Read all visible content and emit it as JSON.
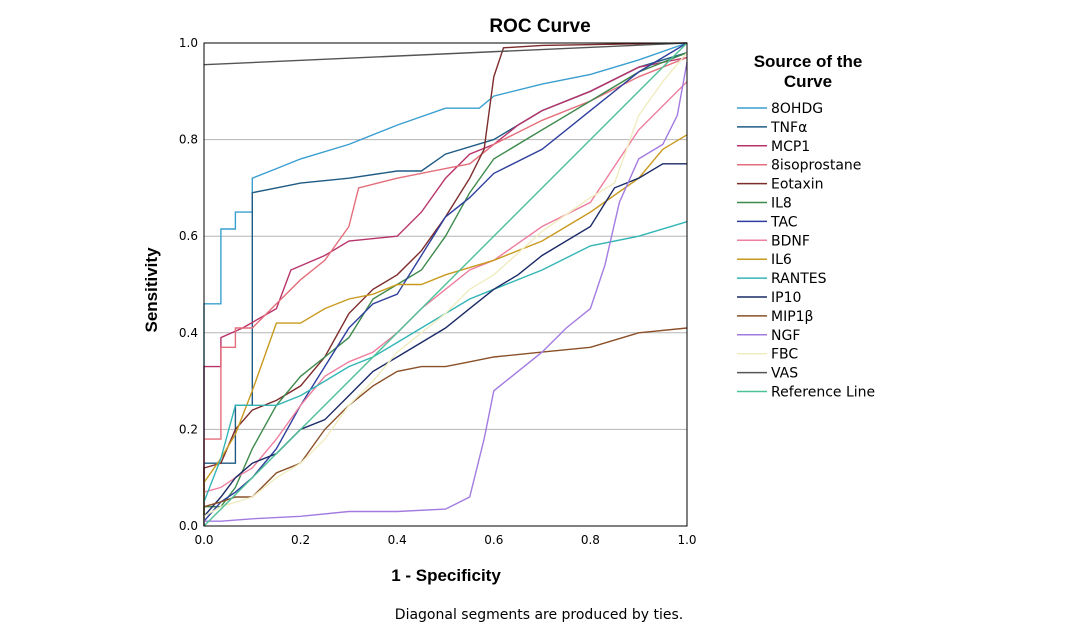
{
  "chart_data": {
    "type": "line",
    "title": "ROC Curve",
    "xlabel": "1 - Specificity",
    "ylabel": "Sensitivity",
    "xlim": [
      0,
      1
    ],
    "ylim": [
      0,
      1
    ],
    "x_ticks": [
      "0.0",
      "0.2",
      "0.4",
      "0.6",
      "0.8",
      "1.0"
    ],
    "y_ticks": [
      "0.0",
      "0.2",
      "0.4",
      "0.6",
      "0.8",
      "1.0"
    ],
    "grid": "horizontal",
    "legend_title": "Source of the Curve",
    "legend_title_lines": [
      "Source of the",
      "Curve"
    ],
    "legend_position": "right",
    "footnote": "Diagonal segments are produced by ties.",
    "series": [
      {
        "name": "8OHDG",
        "color": "#3a9fcf",
        "points": [
          [
            0,
            0
          ],
          [
            0,
            0.46
          ],
          [
            0.035,
            0.46
          ],
          [
            0.035,
            0.615
          ],
          [
            0.065,
            0.615
          ],
          [
            0.065,
            0.65
          ],
          [
            0.1,
            0.65
          ],
          [
            0.1,
            0.72
          ],
          [
            0.15,
            0.74
          ],
          [
            0.2,
            0.76
          ],
          [
            0.3,
            0.79
          ],
          [
            0.4,
            0.83
          ],
          [
            0.5,
            0.865
          ],
          [
            0.57,
            0.865
          ],
          [
            0.6,
            0.89
          ],
          [
            0.7,
            0.915
          ],
          [
            0.8,
            0.935
          ],
          [
            0.9,
            0.965
          ],
          [
            1,
            1
          ]
        ]
      },
      {
        "name": "TNFα",
        "color": "#1f5b85",
        "points": [
          [
            0,
            0
          ],
          [
            0,
            0.13
          ],
          [
            0.065,
            0.13
          ],
          [
            0.065,
            0.25
          ],
          [
            0.1,
            0.25
          ],
          [
            0.1,
            0.69
          ],
          [
            0.15,
            0.7
          ],
          [
            0.2,
            0.71
          ],
          [
            0.3,
            0.72
          ],
          [
            0.4,
            0.735
          ],
          [
            0.45,
            0.735
          ],
          [
            0.5,
            0.77
          ],
          [
            0.6,
            0.8
          ],
          [
            0.7,
            0.86
          ],
          [
            0.8,
            0.9
          ],
          [
            0.9,
            0.95
          ],
          [
            1,
            0.98
          ]
        ]
      },
      {
        "name": "MCP1",
        "color": "#b8336a",
        "points": [
          [
            0,
            0
          ],
          [
            0,
            0.33
          ],
          [
            0.035,
            0.33
          ],
          [
            0.035,
            0.39
          ],
          [
            0.08,
            0.41
          ],
          [
            0.15,
            0.45
          ],
          [
            0.18,
            0.53
          ],
          [
            0.25,
            0.56
          ],
          [
            0.3,
            0.59
          ],
          [
            0.4,
            0.6
          ],
          [
            0.45,
            0.65
          ],
          [
            0.5,
            0.72
          ],
          [
            0.55,
            0.77
          ],
          [
            0.6,
            0.79
          ],
          [
            0.65,
            0.83
          ],
          [
            0.7,
            0.86
          ],
          [
            0.8,
            0.9
          ],
          [
            0.9,
            0.95
          ],
          [
            1,
            0.97
          ]
        ]
      },
      {
        "name": "8isoprostane",
        "color": "#e46f7c",
        "points": [
          [
            0,
            0
          ],
          [
            0,
            0.18
          ],
          [
            0.035,
            0.18
          ],
          [
            0.035,
            0.37
          ],
          [
            0.065,
            0.37
          ],
          [
            0.065,
            0.41
          ],
          [
            0.1,
            0.41
          ],
          [
            0.15,
            0.46
          ],
          [
            0.2,
            0.51
          ],
          [
            0.25,
            0.55
          ],
          [
            0.3,
            0.62
          ],
          [
            0.32,
            0.7
          ],
          [
            0.4,
            0.72
          ],
          [
            0.5,
            0.74
          ],
          [
            0.55,
            0.75
          ],
          [
            0.6,
            0.79
          ],
          [
            0.7,
            0.84
          ],
          [
            0.8,
            0.88
          ],
          [
            0.9,
            0.93
          ],
          [
            1,
            0.97
          ]
        ]
      },
      {
        "name": "Eotaxin",
        "color": "#7d2b2b",
        "points": [
          [
            0,
            0
          ],
          [
            0,
            0.12
          ],
          [
            0.035,
            0.13
          ],
          [
            0.065,
            0.2
          ],
          [
            0.1,
            0.24
          ],
          [
            0.15,
            0.26
          ],
          [
            0.2,
            0.29
          ],
          [
            0.25,
            0.35
          ],
          [
            0.3,
            0.44
          ],
          [
            0.35,
            0.49
          ],
          [
            0.4,
            0.52
          ],
          [
            0.45,
            0.57
          ],
          [
            0.5,
            0.64
          ],
          [
            0.55,
            0.72
          ],
          [
            0.58,
            0.78
          ],
          [
            0.6,
            0.93
          ],
          [
            0.62,
            0.99
          ],
          [
            0.7,
            0.995
          ],
          [
            1,
            1
          ]
        ]
      },
      {
        "name": "IL8",
        "color": "#3e8a4c",
        "points": [
          [
            0,
            0
          ],
          [
            0,
            0.04
          ],
          [
            0.035,
            0.04
          ],
          [
            0.065,
            0.08
          ],
          [
            0.1,
            0.16
          ],
          [
            0.15,
            0.25
          ],
          [
            0.2,
            0.31
          ],
          [
            0.25,
            0.35
          ],
          [
            0.3,
            0.39
          ],
          [
            0.35,
            0.47
          ],
          [
            0.4,
            0.5
          ],
          [
            0.45,
            0.53
          ],
          [
            0.5,
            0.6
          ],
          [
            0.55,
            0.69
          ],
          [
            0.6,
            0.76
          ],
          [
            0.7,
            0.82
          ],
          [
            0.8,
            0.88
          ],
          [
            0.9,
            0.94
          ],
          [
            1,
            0.98
          ]
        ]
      },
      {
        "name": "TAC",
        "color": "#2e3f9e",
        "points": [
          [
            0,
            0
          ],
          [
            0,
            0.01
          ],
          [
            0.035,
            0.05
          ],
          [
            0.065,
            0.07
          ],
          [
            0.1,
            0.1
          ],
          [
            0.15,
            0.16
          ],
          [
            0.2,
            0.25
          ],
          [
            0.25,
            0.33
          ],
          [
            0.3,
            0.41
          ],
          [
            0.35,
            0.46
          ],
          [
            0.4,
            0.48
          ],
          [
            0.45,
            0.56
          ],
          [
            0.5,
            0.64
          ],
          [
            0.55,
            0.68
          ],
          [
            0.6,
            0.73
          ],
          [
            0.7,
            0.78
          ],
          [
            0.8,
            0.86
          ],
          [
            0.9,
            0.94
          ],
          [
            1,
            1
          ]
        ]
      },
      {
        "name": "BDNF",
        "color": "#ee7f9f",
        "points": [
          [
            0,
            0
          ],
          [
            0,
            0.07
          ],
          [
            0.035,
            0.08
          ],
          [
            0.065,
            0.1
          ],
          [
            0.1,
            0.12
          ],
          [
            0.15,
            0.18
          ],
          [
            0.2,
            0.25
          ],
          [
            0.25,
            0.31
          ],
          [
            0.3,
            0.34
          ],
          [
            0.35,
            0.36
          ],
          [
            0.4,
            0.4
          ],
          [
            0.45,
            0.45
          ],
          [
            0.5,
            0.49
          ],
          [
            0.55,
            0.53
          ],
          [
            0.6,
            0.55
          ],
          [
            0.7,
            0.62
          ],
          [
            0.8,
            0.67
          ],
          [
            0.9,
            0.82
          ],
          [
            1,
            0.92
          ]
        ]
      },
      {
        "name": "IL6",
        "color": "#c99a1f",
        "points": [
          [
            0,
            0
          ],
          [
            0,
            0.09
          ],
          [
            0.035,
            0.14
          ],
          [
            0.065,
            0.19
          ],
          [
            0.1,
            0.28
          ],
          [
            0.15,
            0.42
          ],
          [
            0.2,
            0.42
          ],
          [
            0.25,
            0.45
          ],
          [
            0.3,
            0.47
          ],
          [
            0.35,
            0.48
          ],
          [
            0.4,
            0.5
          ],
          [
            0.45,
            0.5
          ],
          [
            0.5,
            0.52
          ],
          [
            0.6,
            0.55
          ],
          [
            0.7,
            0.59
          ],
          [
            0.8,
            0.65
          ],
          [
            0.9,
            0.72
          ],
          [
            0.95,
            0.78
          ],
          [
            1,
            0.81
          ]
        ]
      },
      {
        "name": "RANTES",
        "color": "#33b5b5",
        "points": [
          [
            0,
            0
          ],
          [
            0,
            0.05
          ],
          [
            0.035,
            0.14
          ],
          [
            0.065,
            0.25
          ],
          [
            0.1,
            0.25
          ],
          [
            0.15,
            0.25
          ],
          [
            0.2,
            0.27
          ],
          [
            0.25,
            0.3
          ],
          [
            0.3,
            0.33
          ],
          [
            0.35,
            0.35
          ],
          [
            0.4,
            0.38
          ],
          [
            0.45,
            0.41
          ],
          [
            0.5,
            0.44
          ],
          [
            0.55,
            0.47
          ],
          [
            0.6,
            0.49
          ],
          [
            0.7,
            0.53
          ],
          [
            0.8,
            0.58
          ],
          [
            0.9,
            0.6
          ],
          [
            1,
            0.63
          ]
        ]
      },
      {
        "name": "IP10",
        "color": "#1a2a66",
        "points": [
          [
            0,
            0
          ],
          [
            0,
            0.02
          ],
          [
            0.035,
            0.06
          ],
          [
            0.065,
            0.1
          ],
          [
            0.1,
            0.13
          ],
          [
            0.15,
            0.15
          ],
          [
            0.2,
            0.2
          ],
          [
            0.25,
            0.22
          ],
          [
            0.3,
            0.27
          ],
          [
            0.35,
            0.32
          ],
          [
            0.4,
            0.35
          ],
          [
            0.45,
            0.38
          ],
          [
            0.5,
            0.41
          ],
          [
            0.55,
            0.45
          ],
          [
            0.6,
            0.49
          ],
          [
            0.65,
            0.52
          ],
          [
            0.7,
            0.56
          ],
          [
            0.8,
            0.62
          ],
          [
            0.85,
            0.7
          ],
          [
            0.9,
            0.72
          ],
          [
            0.95,
            0.75
          ],
          [
            1,
            0.75
          ]
        ]
      },
      {
        "name": "MIP1β",
        "color": "#8a5028",
        "points": [
          [
            0,
            0
          ],
          [
            0,
            0.04
          ],
          [
            0.035,
            0.05
          ],
          [
            0.065,
            0.06
          ],
          [
            0.1,
            0.06
          ],
          [
            0.15,
            0.11
          ],
          [
            0.2,
            0.13
          ],
          [
            0.25,
            0.2
          ],
          [
            0.3,
            0.25
          ],
          [
            0.35,
            0.29
          ],
          [
            0.4,
            0.32
          ],
          [
            0.45,
            0.33
          ],
          [
            0.5,
            0.33
          ],
          [
            0.55,
            0.34
          ],
          [
            0.6,
            0.35
          ],
          [
            0.7,
            0.36
          ],
          [
            0.8,
            0.37
          ],
          [
            0.9,
            0.4
          ],
          [
            1,
            0.41
          ]
        ]
      },
      {
        "name": "NGF",
        "color": "#a37be0",
        "points": [
          [
            0,
            0
          ],
          [
            0,
            0.01
          ],
          [
            0.035,
            0.01
          ],
          [
            0.1,
            0.015
          ],
          [
            0.2,
            0.02
          ],
          [
            0.3,
            0.03
          ],
          [
            0.4,
            0.03
          ],
          [
            0.5,
            0.035
          ],
          [
            0.55,
            0.06
          ],
          [
            0.58,
            0.18
          ],
          [
            0.6,
            0.28
          ],
          [
            0.65,
            0.32
          ],
          [
            0.7,
            0.36
          ],
          [
            0.75,
            0.41
          ],
          [
            0.8,
            0.45
          ],
          [
            0.83,
            0.54
          ],
          [
            0.86,
            0.67
          ],
          [
            0.9,
            0.76
          ],
          [
            0.95,
            0.79
          ],
          [
            0.98,
            0.85
          ],
          [
            1,
            0.96
          ]
        ]
      },
      {
        "name": "FBC",
        "color": "#f0ecc0",
        "points": [
          [
            0,
            0
          ],
          [
            0,
            0.02
          ],
          [
            0.035,
            0.04
          ],
          [
            0.1,
            0.06
          ],
          [
            0.15,
            0.1
          ],
          [
            0.2,
            0.13
          ],
          [
            0.25,
            0.18
          ],
          [
            0.3,
            0.25
          ],
          [
            0.35,
            0.3
          ],
          [
            0.4,
            0.36
          ],
          [
            0.45,
            0.4
          ],
          [
            0.5,
            0.44
          ],
          [
            0.55,
            0.49
          ],
          [
            0.6,
            0.52
          ],
          [
            0.7,
            0.61
          ],
          [
            0.8,
            0.68
          ],
          [
            0.85,
            0.71
          ],
          [
            0.9,
            0.85
          ],
          [
            0.95,
            0.92
          ],
          [
            1,
            0.98
          ]
        ]
      },
      {
        "name": "VAS",
        "color": "#555555",
        "points": [
          [
            0,
            0.955
          ],
          [
            1,
            1
          ]
        ]
      },
      {
        "name": "Reference Line",
        "color": "#4cc296",
        "points": [
          [
            0,
            0
          ],
          [
            1,
            1
          ]
        ]
      }
    ]
  }
}
